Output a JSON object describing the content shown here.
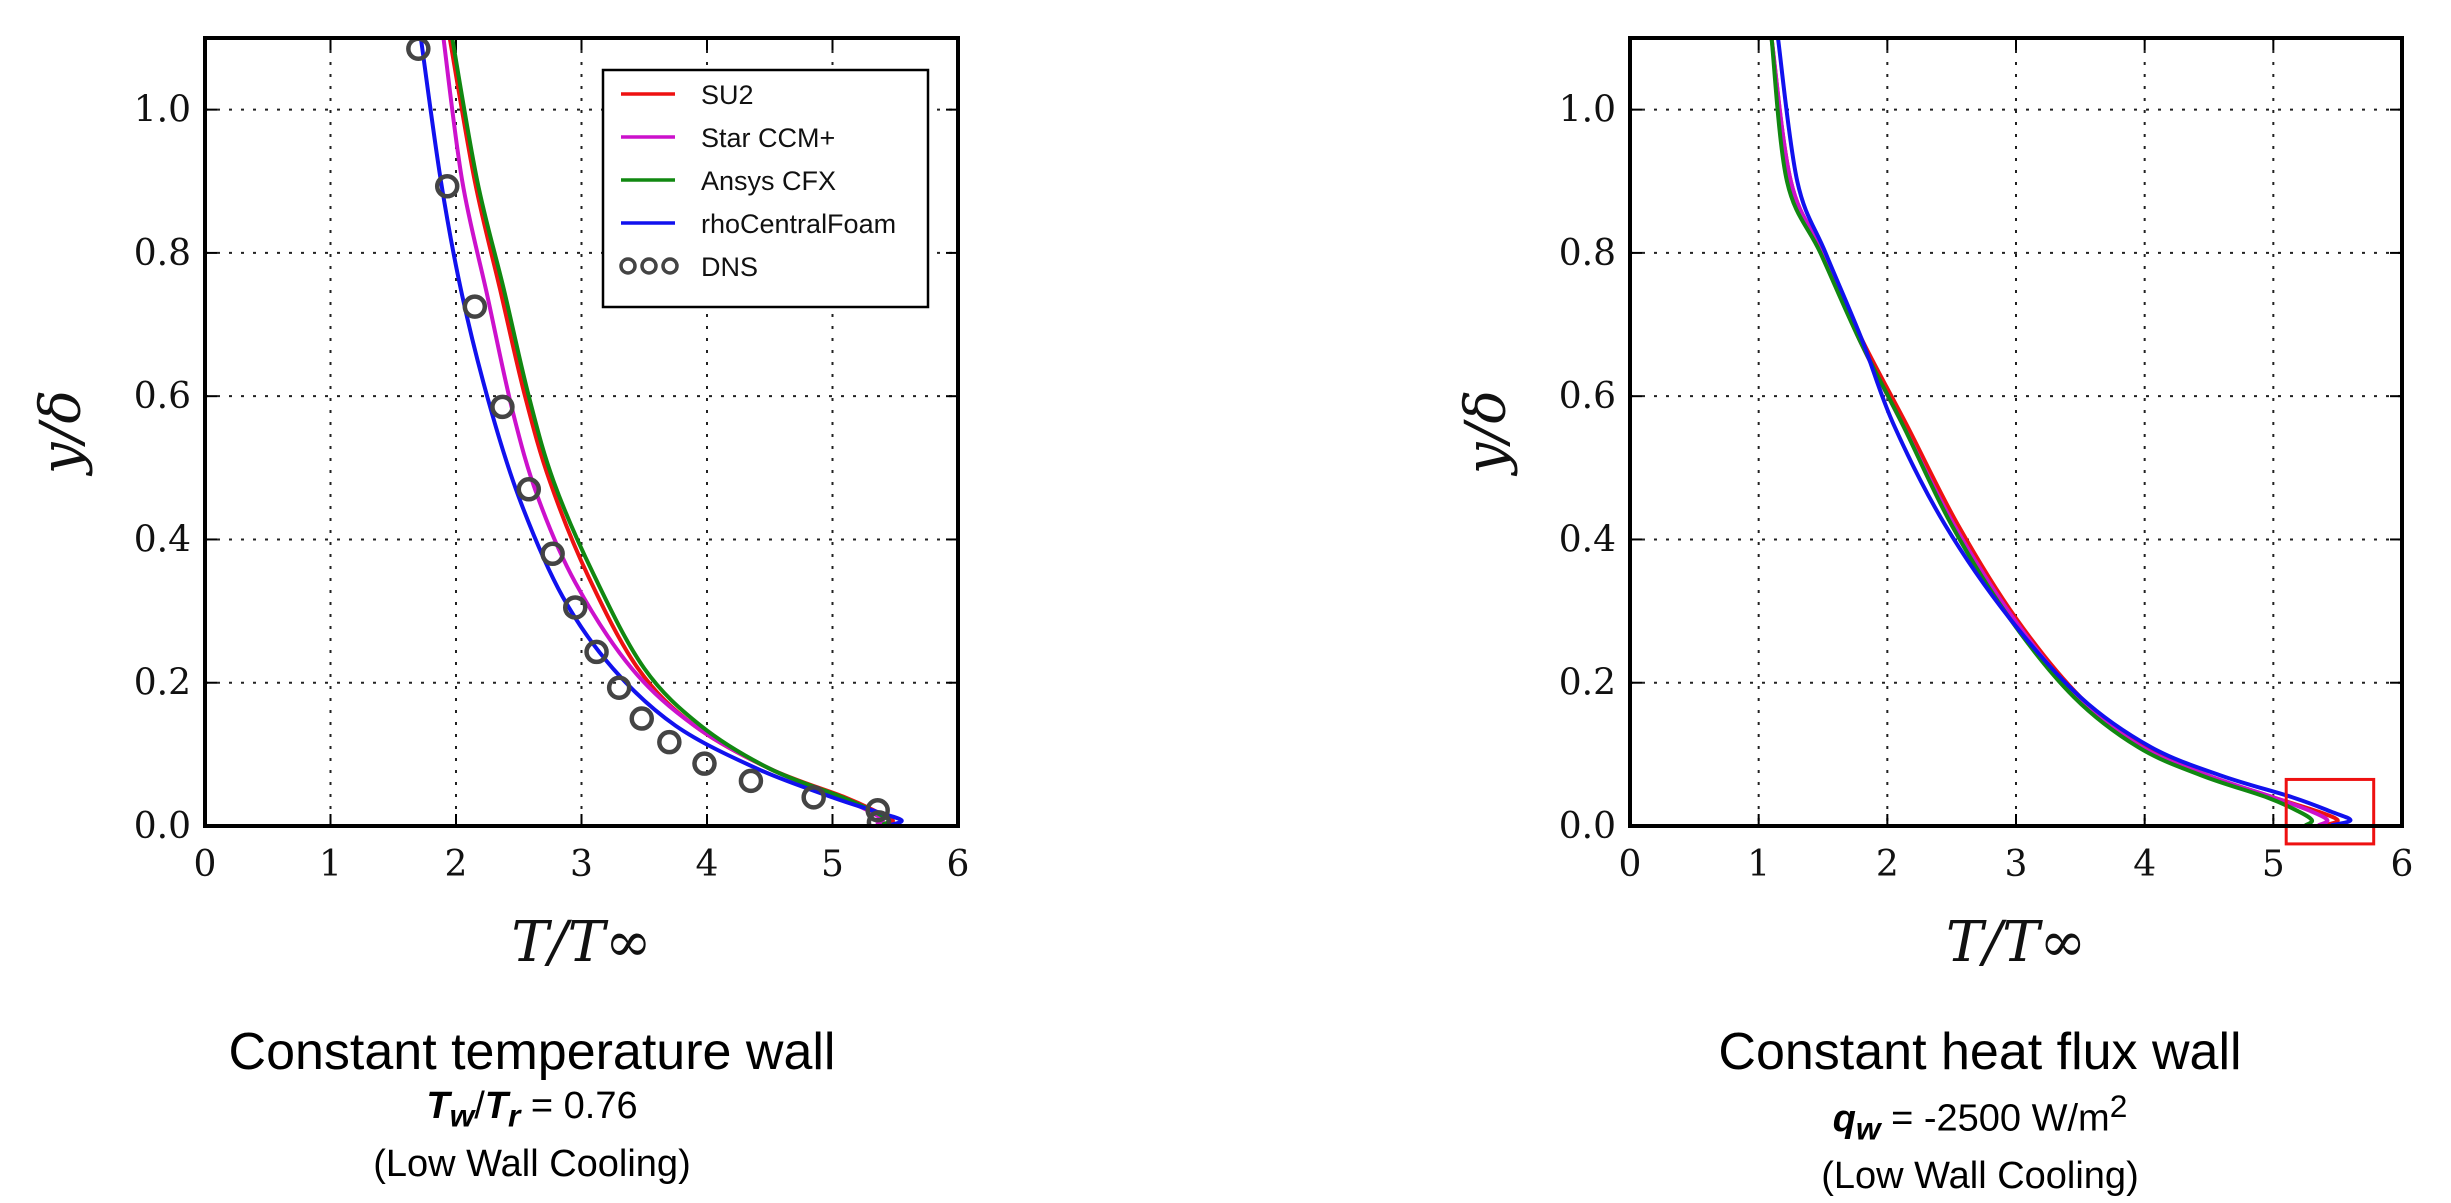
{
  "chart_data": [
    {
      "type": "line",
      "xlabel": "T/T∞",
      "ylabel": "y/δ",
      "xlim": [
        0,
        6
      ],
      "ylim": [
        0,
        1.1
      ],
      "xticks": [
        0,
        1,
        2,
        3,
        4,
        5,
        6
      ],
      "yticks": [
        0.0,
        0.2,
        0.4,
        0.6,
        0.8,
        1.0
      ],
      "xtick_labels": [
        "0",
        "1",
        "2",
        "3",
        "4",
        "5",
        "6"
      ],
      "ytick_labels": [
        "0.0",
        "0.2",
        "0.4",
        "0.6",
        "0.8",
        "1.0"
      ],
      "grid": true,
      "legend_position": "top-right",
      "series": [
        {
          "name": "SU2",
          "color": "#ee1111",
          "style": "line",
          "points": [
            [
              1.95,
              1.1
            ],
            [
              2.15,
              0.9
            ],
            [
              2.35,
              0.75
            ],
            [
              2.55,
              0.6
            ],
            [
              2.75,
              0.48
            ],
            [
              3.05,
              0.35
            ],
            [
              3.45,
              0.22
            ],
            [
              3.9,
              0.14
            ],
            [
              4.5,
              0.08
            ],
            [
              5.1,
              0.04
            ],
            [
              5.35,
              0.02
            ],
            [
              5.48,
              0.008
            ],
            [
              5.42,
              0.002
            ]
          ]
        },
        {
          "name": "Star CCM+",
          "color": "#cc11cc",
          "style": "line",
          "points": [
            [
              1.9,
              1.1
            ],
            [
              2.05,
              0.9
            ],
            [
              2.25,
              0.74
            ],
            [
              2.45,
              0.58
            ],
            [
              2.65,
              0.46
            ],
            [
              2.95,
              0.34
            ],
            [
              3.4,
              0.22
            ],
            [
              3.9,
              0.14
            ],
            [
              4.5,
              0.08
            ],
            [
              5.05,
              0.04
            ],
            [
              5.3,
              0.02
            ],
            [
              5.4,
              0.008
            ],
            [
              5.35,
              0.002
            ]
          ]
        },
        {
          "name": "Ansys CFX",
          "color": "#118811",
          "style": "line",
          "points": [
            [
              1.97,
              1.1
            ],
            [
              2.17,
              0.9
            ],
            [
              2.38,
              0.75
            ],
            [
              2.58,
              0.6
            ],
            [
              2.78,
              0.48
            ],
            [
              3.1,
              0.35
            ],
            [
              3.5,
              0.22
            ],
            [
              3.95,
              0.14
            ],
            [
              4.5,
              0.08
            ],
            [
              5.08,
              0.04
            ],
            [
              5.33,
              0.02
            ],
            [
              5.45,
              0.008
            ],
            [
              5.4,
              0.002
            ]
          ]
        },
        {
          "name": "rhoCentralFoam",
          "color": "#1111ee",
          "style": "line",
          "points": [
            [
              1.72,
              1.1
            ],
            [
              1.88,
              0.9
            ],
            [
              2.05,
              0.74
            ],
            [
              2.28,
              0.58
            ],
            [
              2.52,
              0.45
            ],
            [
              2.85,
              0.32
            ],
            [
              3.25,
              0.22
            ],
            [
              3.75,
              0.14
            ],
            [
              4.4,
              0.08
            ],
            [
              5.0,
              0.04
            ],
            [
              5.35,
              0.02
            ],
            [
              5.55,
              0.008
            ],
            [
              5.45,
              0.001
            ]
          ]
        },
        {
          "name": "DNS",
          "color": "#444444",
          "style": "marker",
          "points": [
            [
              1.7,
              1.085
            ],
            [
              1.93,
              0.893
            ],
            [
              2.15,
              0.725
            ],
            [
              2.37,
              0.585
            ],
            [
              2.58,
              0.47
            ],
            [
              2.77,
              0.38
            ],
            [
              2.95,
              0.305
            ],
            [
              3.12,
              0.243
            ],
            [
              3.3,
              0.193
            ],
            [
              3.48,
              0.15
            ],
            [
              3.7,
              0.117
            ],
            [
              3.98,
              0.087
            ],
            [
              4.35,
              0.063
            ],
            [
              4.85,
              0.04
            ],
            [
              5.36,
              0.022
            ],
            [
              5.37,
              0.005
            ]
          ]
        }
      ]
    },
    {
      "type": "line",
      "xlabel": "T/T∞",
      "ylabel": "y/δ",
      "xlim": [
        0,
        6
      ],
      "ylim": [
        0,
        1.1
      ],
      "xticks": [
        0,
        1,
        2,
        3,
        4,
        5,
        6
      ],
      "yticks": [
        0.0,
        0.2,
        0.4,
        0.6,
        0.8,
        1.0
      ],
      "xtick_labels": [
        "0",
        "1",
        "2",
        "3",
        "4",
        "5",
        "6"
      ],
      "ytick_labels": [
        "0.0",
        "0.2",
        "0.4",
        "0.6",
        "0.8",
        "1.0"
      ],
      "grid": true,
      "highlight_box": {
        "x": [
          5.1,
          5.78
        ],
        "y": [
          -0.025,
          0.065
        ],
        "color": "#ee1111"
      },
      "series": [
        {
          "name": "SU2",
          "color": "#ee1111",
          "style": "line",
          "points": [
            [
              1.1,
              1.1
            ],
            [
              1.25,
              0.9
            ],
            [
              1.5,
              0.8
            ],
            [
              1.8,
              0.68
            ],
            [
              2.15,
              0.56
            ],
            [
              2.55,
              0.42
            ],
            [
              3.0,
              0.29
            ],
            [
              3.5,
              0.18
            ],
            [
              4.0,
              0.11
            ],
            [
              4.5,
              0.07
            ],
            [
              5.0,
              0.04
            ],
            [
              5.35,
              0.02
            ],
            [
              5.5,
              0.008
            ],
            [
              5.4,
              0.001
            ]
          ]
        },
        {
          "name": "Star CCM+",
          "color": "#cc11cc",
          "style": "line",
          "points": [
            [
              1.1,
              1.1
            ],
            [
              1.25,
              0.9
            ],
            [
              1.5,
              0.8
            ],
            [
              1.78,
              0.68
            ],
            [
              2.12,
              0.56
            ],
            [
              2.52,
              0.42
            ],
            [
              2.98,
              0.29
            ],
            [
              3.48,
              0.18
            ],
            [
              3.98,
              0.11
            ],
            [
              4.5,
              0.07
            ],
            [
              5.0,
              0.04
            ],
            [
              5.3,
              0.02
            ],
            [
              5.42,
              0.008
            ],
            [
              5.35,
              0.001
            ]
          ]
        },
        {
          "name": "Ansys CFX",
          "color": "#118811",
          "style": "line",
          "points": [
            [
              1.1,
              1.1
            ],
            [
              1.22,
              0.9
            ],
            [
              1.48,
              0.8
            ],
            [
              1.78,
              0.68
            ],
            [
              2.12,
              0.56
            ],
            [
              2.5,
              0.42
            ],
            [
              2.95,
              0.29
            ],
            [
              3.45,
              0.18
            ],
            [
              3.95,
              0.11
            ],
            [
              4.45,
              0.07
            ],
            [
              4.95,
              0.04
            ],
            [
              5.2,
              0.02
            ],
            [
              5.3,
              0.008
            ],
            [
              5.25,
              0.001
            ]
          ]
        },
        {
          "name": "rhoCentralFoam",
          "color": "#1111ee",
          "style": "line",
          "points": [
            [
              1.15,
              1.1
            ],
            [
              1.3,
              0.9
            ],
            [
              1.52,
              0.8
            ],
            [
              1.8,
              0.68
            ],
            [
              2.05,
              0.56
            ],
            [
              2.45,
              0.42
            ],
            [
              2.95,
              0.29
            ],
            [
              3.5,
              0.18
            ],
            [
              4.05,
              0.11
            ],
            [
              4.6,
              0.07
            ],
            [
              5.15,
              0.04
            ],
            [
              5.45,
              0.02
            ],
            [
              5.6,
              0.008
            ],
            [
              5.45,
              0.001
            ]
          ]
        }
      ]
    }
  ],
  "captions": [
    {
      "title": "Constant temperature wall",
      "var1": "T",
      "sub1": "w",
      "var2": "T",
      "sub2": "r",
      "rest": " = 0.76",
      "note": "(Low Wall Cooling)"
    },
    {
      "title": "Constant heat flux wall",
      "var1": "q",
      "sub1": "w",
      "rest": " = -2500 W/m",
      "sup": "2",
      "note": "(Low Wall Cooling)"
    }
  ]
}
